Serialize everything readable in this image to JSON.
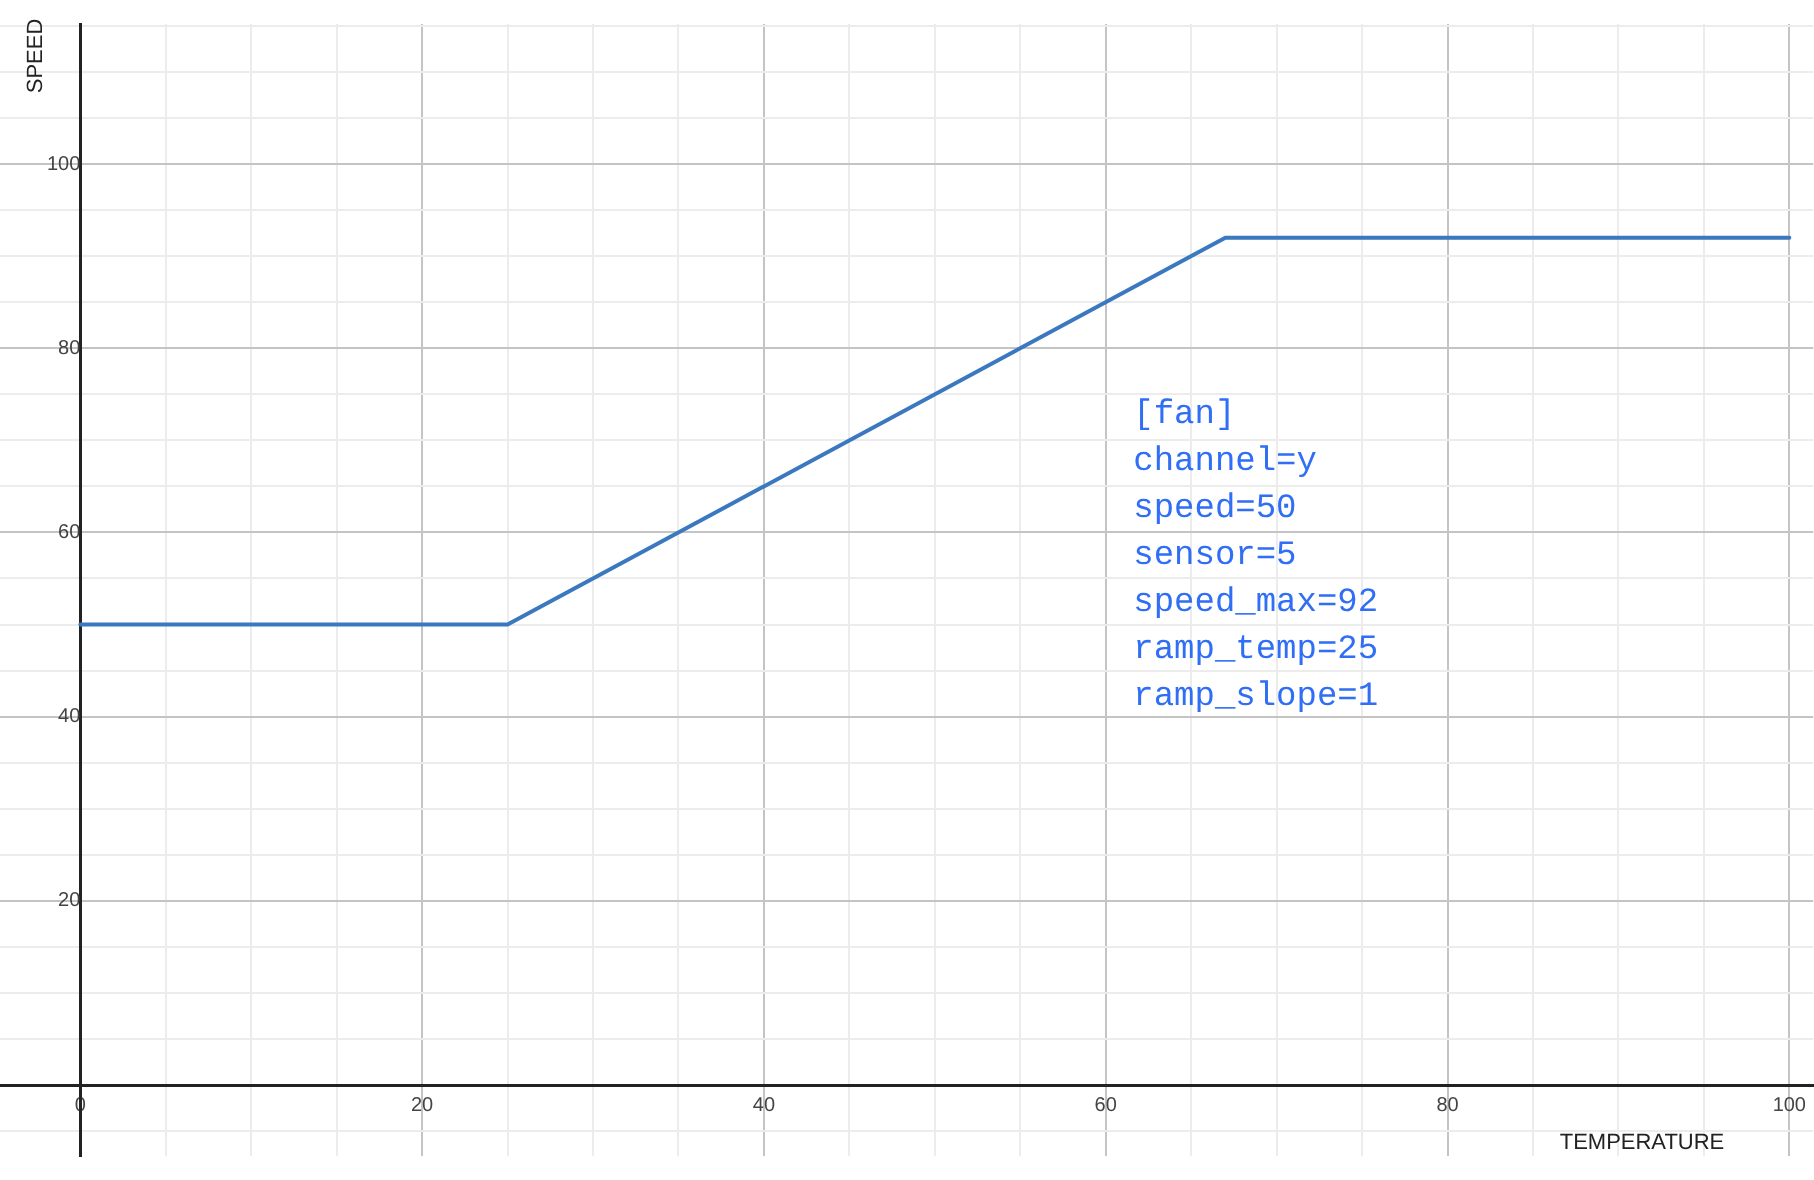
{
  "chart_data": {
    "type": "line",
    "xlabel": "TEMPERATURE",
    "ylabel": "SPEED",
    "x": [
      0,
      25,
      67,
      100
    ],
    "series": [
      {
        "color": "#3a78bf",
        "values": [
          50,
          50,
          92,
          92
        ]
      }
    ],
    "xlim": [
      -4.7,
      101.4
    ],
    "ylim": [
      -7.7,
      115.2
    ],
    "xticks": [
      0,
      {
        "value": 5,
        "label": null
      },
      {
        "value": 10,
        "label": null
      },
      {
        "value": 15,
        "label": null
      },
      20,
      {
        "value": 25,
        "label": null
      },
      {
        "value": 30,
        "label": null
      },
      {
        "value": 35,
        "label": null
      },
      40,
      {
        "value": 45,
        "label": null
      },
      {
        "value": 50,
        "label": null
      },
      {
        "value": 55,
        "label": null
      },
      60,
      {
        "value": 65,
        "label": null
      },
      {
        "value": 70,
        "label": null
      },
      {
        "value": 75,
        "label": null
      },
      80,
      {
        "value": 85,
        "label": null
      },
      {
        "value": 90,
        "label": null
      },
      {
        "value": 95,
        "label": null
      },
      100
    ],
    "yticks": [
      {
        "value": -5,
        "label": null
      },
      {
        "value": 5,
        "label": null
      },
      {
        "value": 10,
        "label": null
      },
      {
        "value": 15,
        "label": null
      },
      20,
      {
        "value": 25,
        "label": null
      },
      {
        "value": 30,
        "label": null
      },
      {
        "value": 35,
        "label": null
      },
      40,
      {
        "value": 45,
        "label": null
      },
      {
        "value": 50,
        "label": null
      },
      {
        "value": 55,
        "label": null
      },
      60,
      {
        "value": 65,
        "label": null
      },
      {
        "value": 70,
        "label": null
      },
      {
        "value": 75,
        "label": null
      },
      80,
      {
        "value": 85,
        "label": null
      },
      {
        "value": 90,
        "label": null
      },
      {
        "value": 95,
        "label": null
      },
      100,
      {
        "value": 105,
        "label": null
      },
      {
        "value": 110,
        "label": null
      },
      {
        "value": 115,
        "label": null
      }
    ],
    "grid": true,
    "legend": false,
    "marker": "none",
    "line_style": "solid",
    "annotations": [
      "[fan]",
      "channel=y",
      "speed=50",
      "sensor=5",
      "speed_max=92",
      "ramp_temp=25",
      "ramp_slope=1"
    ]
  }
}
